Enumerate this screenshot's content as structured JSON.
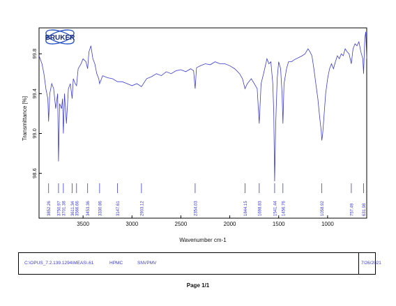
{
  "logo": {
    "text": "BRUKER"
  },
  "chart_data": {
    "type": "line",
    "title": "",
    "xlabel": "Wavenumber cm-1",
    "ylabel": "Transmittance [%]",
    "xlim": [
      3950,
      600
    ],
    "ylim": [
      98.15,
      100.06
    ],
    "x_reversed": true,
    "grid": false,
    "line_color": "#3a3ad6",
    "x_ticks": [
      3500,
      3000,
      2500,
      2000,
      1500,
      1000
    ],
    "y_ticks": [
      98.6,
      99.0,
      99.4,
      99.8
    ],
    "y_tick_labels": [
      "98.6",
      "99.0",
      "99.4",
      "99.8"
    ],
    "peak_labels": [
      "3852.26",
      "3750.97",
      "3701.38",
      "3611.34",
      "3566.66",
      "3453.36",
      "3330.86",
      "3147.61",
      "2903.12",
      "2354.03",
      "1844.15",
      "1698.83",
      "1541.44",
      "1456.76",
      "1058.92",
      "757.49",
      "631.98"
    ],
    "peak_positions": [
      3852.26,
      3750.97,
      3701.38,
      3611.34,
      3566.66,
      3453.36,
      3330.86,
      3147.61,
      2903.12,
      2354.03,
      1844.15,
      1698.83,
      1541.44,
      1456.76,
      1058.92,
      757.49,
      631.98
    ],
    "series": [
      {
        "values": [
          [
            3950,
            99.78
          ],
          [
            3920,
            99.7
          ],
          [
            3900,
            99.6
          ],
          [
            3880,
            99.45
          ],
          [
            3860,
            99.35
          ],
          [
            3852.26,
            99.12
          ],
          [
            3840,
            99.4
          ],
          [
            3820,
            99.5
          ],
          [
            3800,
            99.45
          ],
          [
            3780,
            99.25
          ],
          [
            3760,
            99.4
          ],
          [
            3750.97,
            98.72
          ],
          [
            3740,
            99.3
          ],
          [
            3720,
            99.25
          ],
          [
            3710,
            99.35
          ],
          [
            3701.38,
            99.0
          ],
          [
            3690,
            99.4
          ],
          [
            3670,
            99.1
          ],
          [
            3650,
            99.45
          ],
          [
            3630,
            99.5
          ],
          [
            3611.34,
            99.35
          ],
          [
            3600,
            99.55
          ],
          [
            3580,
            99.5
          ],
          [
            3566.66,
            99.48
          ],
          [
            3550,
            99.65
          ],
          [
            3520,
            99.7
          ],
          [
            3500,
            99.75
          ],
          [
            3470,
            99.72
          ],
          [
            3453.36,
            99.65
          ],
          [
            3440,
            99.82
          ],
          [
            3420,
            99.88
          ],
          [
            3400,
            99.75
          ],
          [
            3380,
            99.7
          ],
          [
            3360,
            99.6
          ],
          [
            3340,
            99.55
          ],
          [
            3330.86,
            99.5
          ],
          [
            3300,
            99.58
          ],
          [
            3250,
            99.56
          ],
          [
            3200,
            99.55
          ],
          [
            3147.61,
            99.52
          ],
          [
            3100,
            99.52
          ],
          [
            3050,
            99.5
          ],
          [
            3000,
            99.48
          ],
          [
            2950,
            99.5
          ],
          [
            2903.12,
            99.47
          ],
          [
            2850,
            99.55
          ],
          [
            2800,
            99.57
          ],
          [
            2750,
            99.6
          ],
          [
            2700,
            99.58
          ],
          [
            2650,
            99.62
          ],
          [
            2600,
            99.6
          ],
          [
            2550,
            99.63
          ],
          [
            2500,
            99.64
          ],
          [
            2450,
            99.62
          ],
          [
            2400,
            99.65
          ],
          [
            2370,
            99.63
          ],
          [
            2354.03,
            99.45
          ],
          [
            2340,
            99.66
          ],
          [
            2300,
            99.68
          ],
          [
            2250,
            99.7
          ],
          [
            2200,
            99.69
          ],
          [
            2150,
            99.72
          ],
          [
            2100,
            99.7
          ],
          [
            2050,
            99.7
          ],
          [
            2000,
            99.68
          ],
          [
            1950,
            99.65
          ],
          [
            1900,
            99.6
          ],
          [
            1870,
            99.55
          ],
          [
            1844.15,
            99.45
          ],
          [
            1820,
            99.5
          ],
          [
            1780,
            99.55
          ],
          [
            1750,
            99.5
          ],
          [
            1720,
            99.45
          ],
          [
            1698.83,
            99.1
          ],
          [
            1680,
            99.5
          ],
          [
            1650,
            99.62
          ],
          [
            1620,
            99.75
          ],
          [
            1600,
            99.7
          ],
          [
            1580,
            99.72
          ],
          [
            1560,
            99.5
          ],
          [
            1550,
            99.2
          ],
          [
            1541.44,
            98.52
          ],
          [
            1530,
            99.1
          ],
          [
            1515,
            99.55
          ],
          [
            1500,
            99.72
          ],
          [
            1480,
            99.65
          ],
          [
            1465,
            99.4
          ],
          [
            1456.76,
            99.1
          ],
          [
            1445,
            99.5
          ],
          [
            1420,
            99.65
          ],
          [
            1400,
            99.72
          ],
          [
            1370,
            99.72
          ],
          [
            1340,
            99.74
          ],
          [
            1300,
            99.76
          ],
          [
            1260,
            99.78
          ],
          [
            1230,
            99.8
          ],
          [
            1200,
            99.85
          ],
          [
            1180,
            99.82
          ],
          [
            1160,
            99.78
          ],
          [
            1140,
            99.65
          ],
          [
            1120,
            99.5
          ],
          [
            1100,
            99.35
          ],
          [
            1080,
            99.15
          ],
          [
            1065,
            99.02
          ],
          [
            1058.92,
            98.93
          ],
          [
            1050,
            99.0
          ],
          [
            1035,
            99.2
          ],
          [
            1020,
            99.4
          ],
          [
            1000,
            99.55
          ],
          [
            980,
            99.65
          ],
          [
            960,
            99.7
          ],
          [
            940,
            99.65
          ],
          [
            920,
            99.72
          ],
          [
            900,
            99.78
          ],
          [
            880,
            99.75
          ],
          [
            860,
            99.8
          ],
          [
            840,
            99.78
          ],
          [
            820,
            99.85
          ],
          [
            800,
            99.82
          ],
          [
            780,
            99.8
          ],
          [
            757.49,
            99.7
          ],
          [
            740,
            99.85
          ],
          [
            720,
            99.9
          ],
          [
            700,
            99.88
          ],
          [
            680,
            99.92
          ],
          [
            660,
            99.82
          ],
          [
            640,
            99.75
          ],
          [
            631.98,
            99.6
          ],
          [
            620,
            99.95
          ],
          [
            610,
            100.02
          ],
          [
            600,
            99.75
          ]
        ]
      }
    ]
  },
  "footer": {
    "file_path": "C:\\OPUS_7.2.139.1294\\MEAS\\.61",
    "sample_name": "HPMC",
    "description": "SNVPMV",
    "date": "7/26/2021"
  },
  "page_label": "Page 1/1"
}
